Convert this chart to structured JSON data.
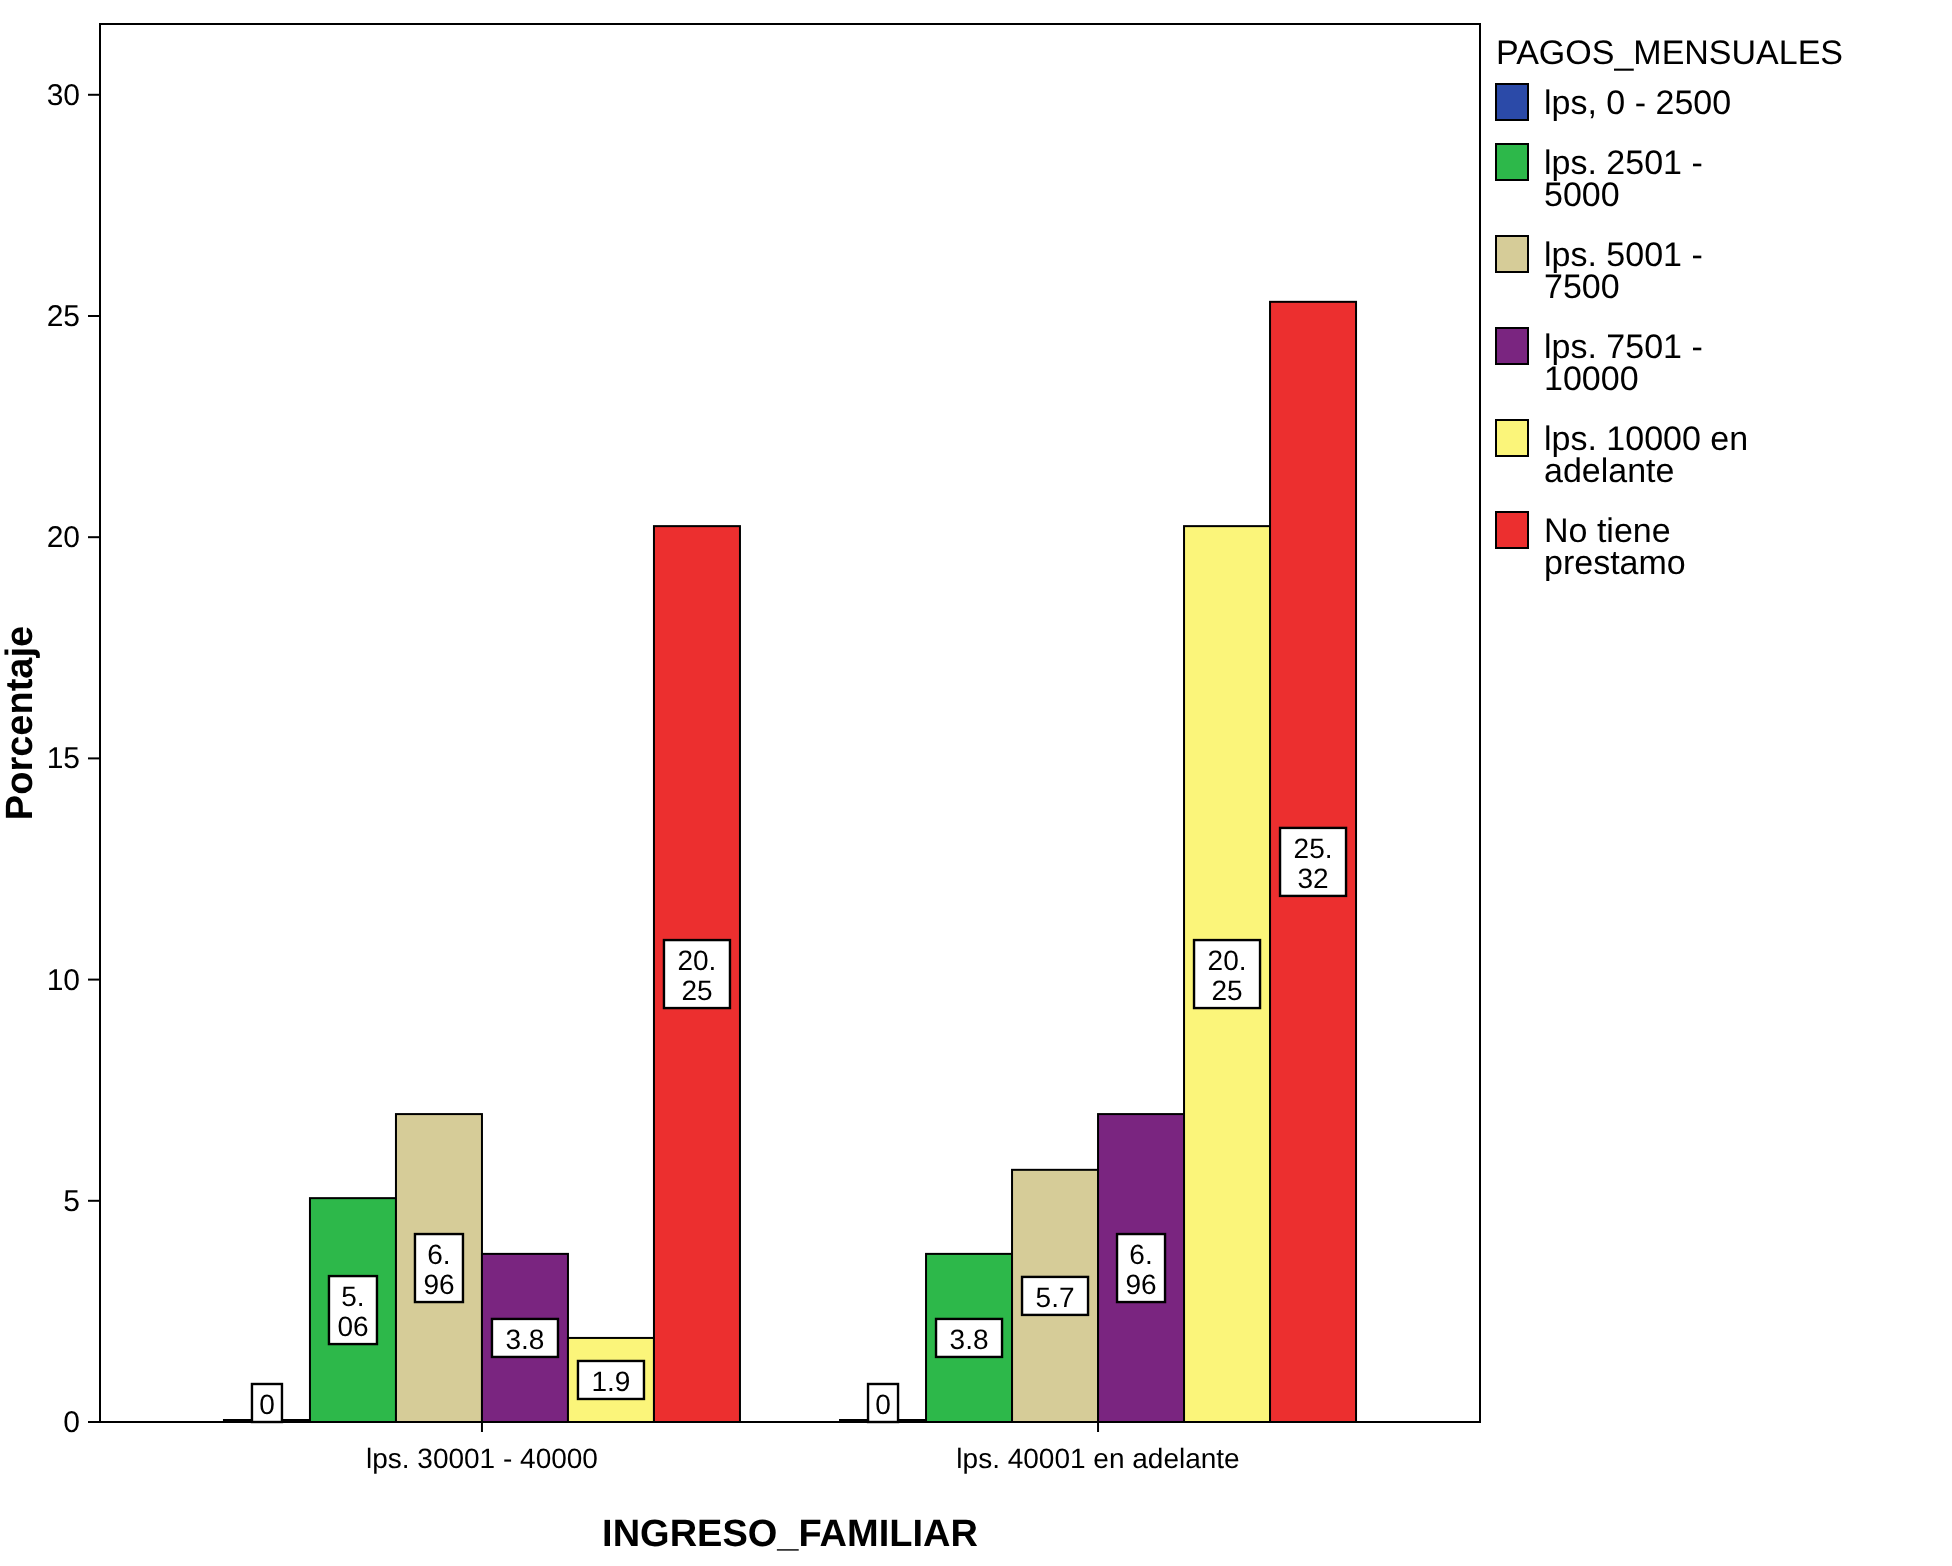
{
  "chart_data": {
    "type": "bar",
    "xlabel": "INGRESO_FAMILIAR",
    "ylabel": "Porcentaje",
    "legend_title": "PAGOS_MENSUALES",
    "categories": [
      "lps. 30001 - 40000",
      "lps. 40001 en adelante"
    ],
    "series": [
      {
        "name": "lps, 0 - 2500",
        "color": "#2b4aa8",
        "values": [
          0,
          0
        ]
      },
      {
        "name": "lps. 2501 - 5000",
        "color": "#2db84a",
        "values": [
          5.06,
          3.8
        ]
      },
      {
        "name": "lps. 5001 - 7500",
        "color": "#d6cc98",
        "values": [
          6.96,
          5.7
        ]
      },
      {
        "name": "lps. 7501 - 10000",
        "color": "#7a2580",
        "values": [
          3.8,
          6.96
        ]
      },
      {
        "name": "lps. 10000 en adelante",
        "color": "#fbf57a",
        "values": [
          1.9,
          20.25
        ]
      },
      {
        "name": "No tiene prestamo",
        "color": "#ec2f2f",
        "values": [
          20.25,
          25.32
        ]
      }
    ],
    "ylim": [
      0,
      31.6
    ],
    "yticks": [
      0,
      5,
      10,
      15,
      20,
      25,
      30
    ],
    "grid": false,
    "legend": "top right",
    "data_labels": true
  }
}
